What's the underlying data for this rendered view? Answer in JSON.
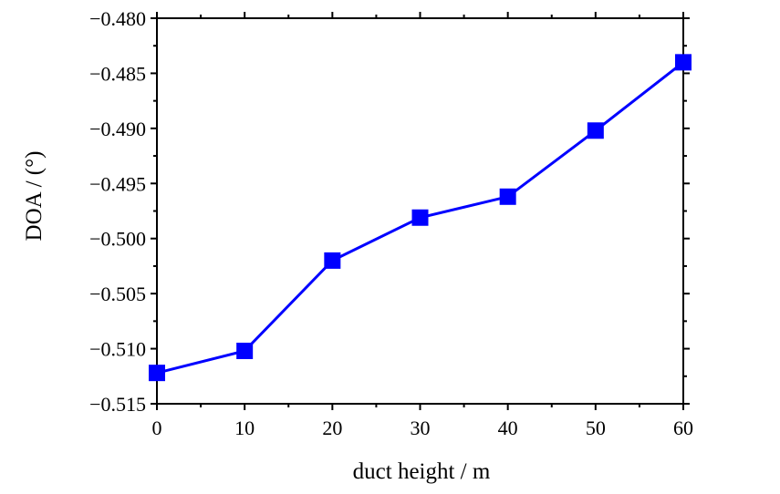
{
  "chart_data": {
    "type": "line",
    "title": "",
    "xlabel": "duct height / m",
    "ylabel": "DOA / (°)",
    "xlim": [
      0,
      60
    ],
    "ylim": [
      -0.515,
      -0.48
    ],
    "x_ticks": [
      0,
      10,
      20,
      30,
      40,
      50,
      60
    ],
    "x_tick_labels": [
      "0",
      "10",
      "20",
      "30",
      "40",
      "50",
      "60"
    ],
    "y_ticks": [
      -0.48,
      -0.485,
      -0.49,
      -0.495,
      -0.5,
      -0.505,
      -0.51,
      -0.515
    ],
    "y_tick_labels": [
      "−0.480",
      "−0.485",
      "−0.490",
      "−0.495",
      "−0.500",
      "−0.505",
      "−0.510",
      "−0.515"
    ],
    "grid": false,
    "legend": "none",
    "series": [
      {
        "x": [
          0,
          10,
          20,
          30,
          40,
          50,
          60
        ],
        "values": [
          -0.5122,
          -0.5102,
          -0.502,
          -0.4981,
          -0.4962,
          -0.4902,
          -0.484
        ],
        "color": "#0000ff",
        "marker": "square"
      }
    ]
  }
}
